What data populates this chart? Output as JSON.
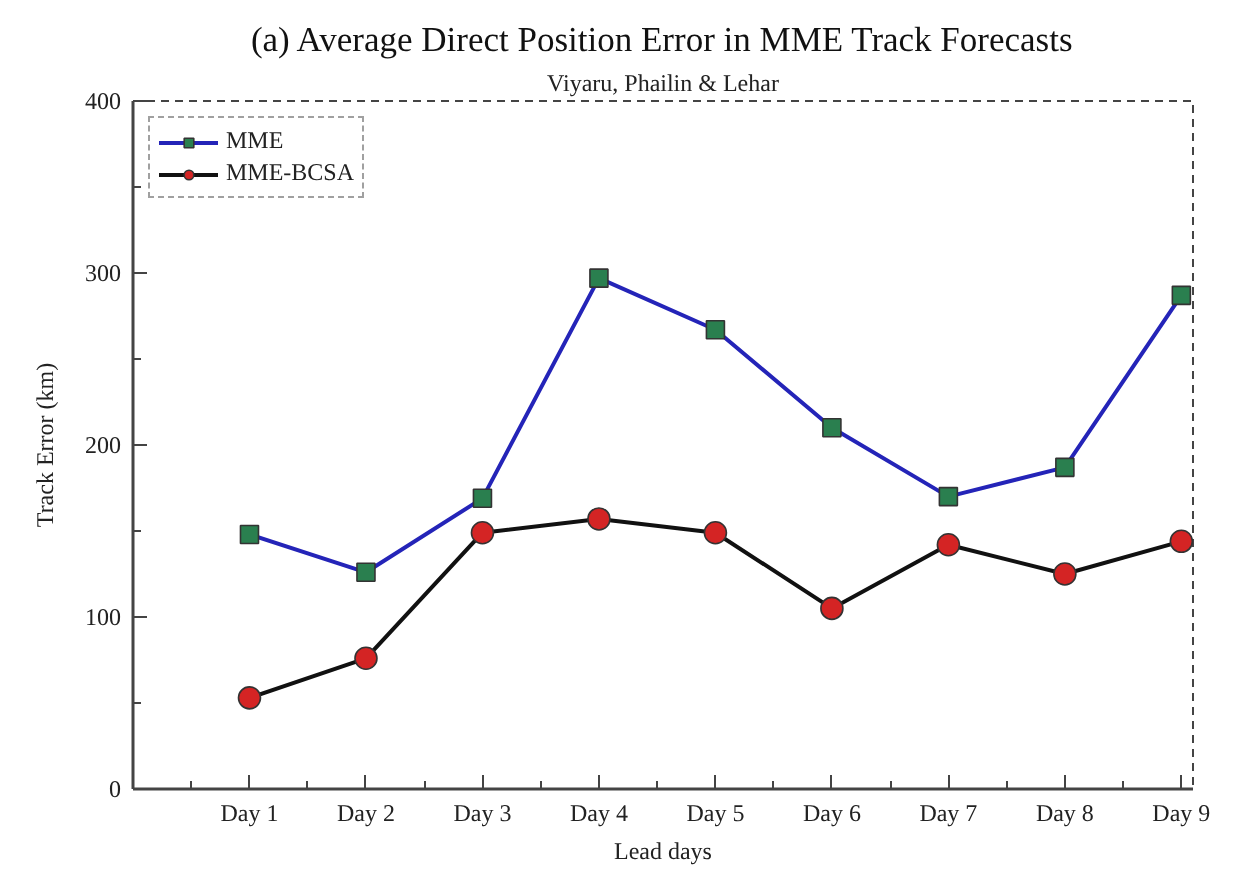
{
  "chart_data": {
    "type": "line",
    "title": "(a) Average Direct Position Error in MME Track Forecasts",
    "subtitle": "Viyaru, Phailin & Lehar",
    "xlabel": "Lead days",
    "ylabel": "Track Error (km)",
    "categories": [
      "Day 1",
      "Day 2",
      "Day 3",
      "Day 4",
      "Day 5",
      "Day 6",
      "Day 7",
      "Day 8",
      "Day 9"
    ],
    "series": [
      {
        "name": "MME",
        "color": "#2424b8",
        "marker": "square",
        "colors": [
          "#2a7f4f",
          "#2a7f4f",
          "#2a7f4f",
          "#2a7f4f",
          "#2a7f4f",
          "#2a7f4f",
          "#2a7f4f",
          "#2a7f4f",
          "#2a7f4f"
        ],
        "values": [
          148,
          126,
          169,
          297,
          267,
          210,
          170,
          187,
          287
        ]
      },
      {
        "name": "MME-BCSA",
        "color": "#111111",
        "marker": "circle",
        "colors": [
          "#d42424",
          "#d42424",
          "#d42424",
          "#d42424",
          "#d42424",
          "#d42424",
          "#d42424",
          "#d42424",
          "#d42424"
        ],
        "values": [
          53,
          76,
          149,
          157,
          149,
          105,
          142,
          125,
          144
        ]
      }
    ],
    "ylim": [
      0,
      400
    ],
    "yticks": [
      0,
      100,
      200,
      300,
      400
    ],
    "grid": false,
    "legend": "top left",
    "line_style": "solid"
  }
}
